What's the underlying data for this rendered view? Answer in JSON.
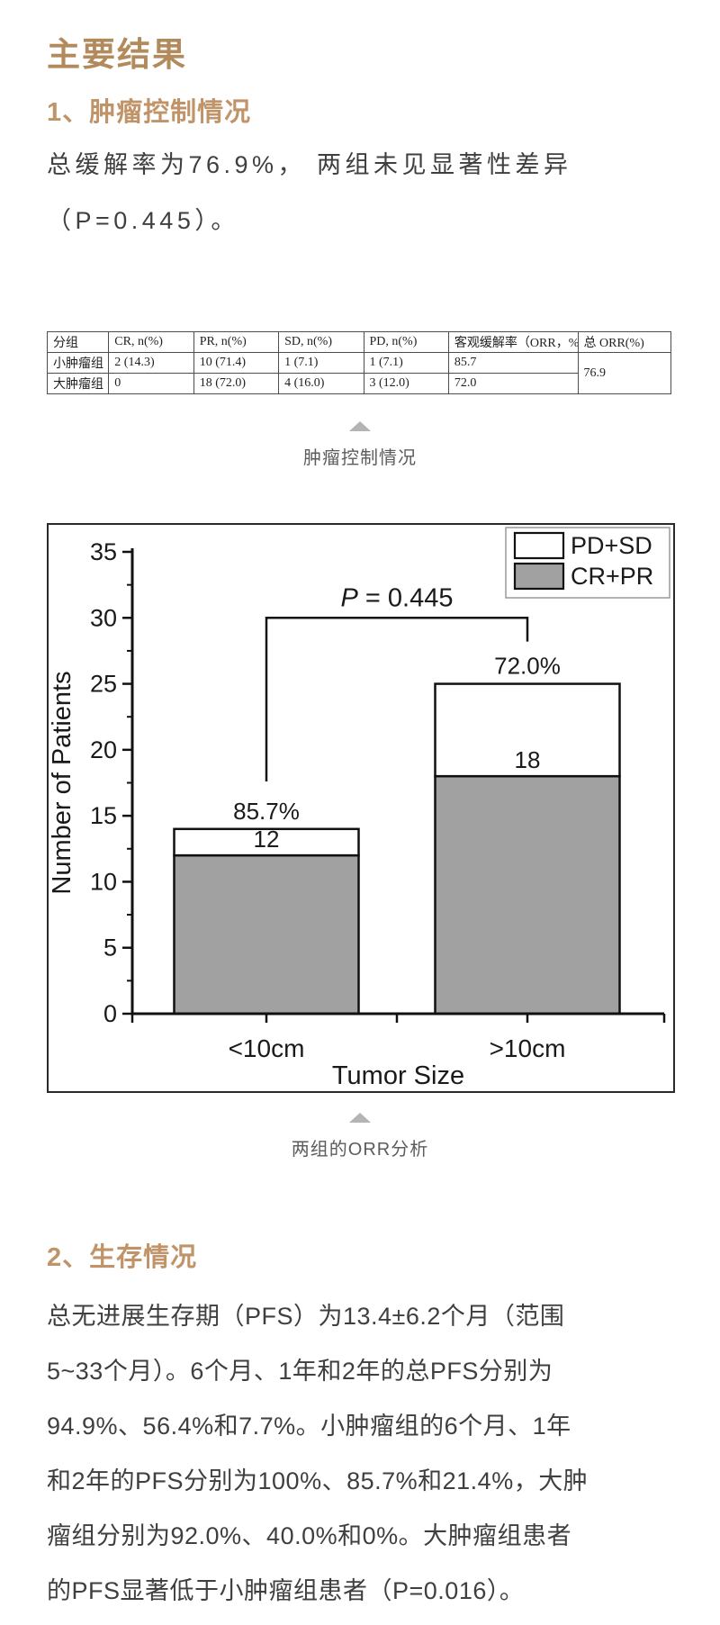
{
  "page": {
    "main_title": "主要结果",
    "section1": {
      "heading": "1、肿瘤控制情况",
      "paragraph": "总缓解率为76.9%， 两组未见显著性差异\n（P=0.445）。"
    },
    "table": {
      "headers": [
        "分组",
        "CR, n(%)",
        "PR, n(%)",
        "SD, n(%)",
        "PD, n(%)",
        "客观缓解率（ORR，%）",
        "总 ORR(%)"
      ],
      "rows": [
        [
          "小肿瘤组",
          "2 (14.3)",
          "10 (71.4)",
          "1 (7.1)",
          "1 (7.1)",
          "85.7"
        ],
        [
          "大肿瘤组",
          "0",
          "18 (72.0)",
          "4 (16.0)",
          "3 (12.0)",
          "72.0"
        ]
      ],
      "total_orr": "76.9"
    },
    "caption_table": "肿瘤控制情况",
    "caption_chart": "两组的ORR分析",
    "section2": {
      "heading": "2、生存情况",
      "paragraph": "总无进展生存期（PFS）为13.4±6.2个月（范围\n5~33个月）。6个月、1年和2年的总PFS分别为\n94.9%、56.4%和7.7%。小肿瘤组的6个月、1年\n和2年的PFS分别为100%、85.7%和21.4%，大肿\n瘤组分别为92.0%、40.0%和0%。大肿瘤组患者\n的PFS显著低于小肿瘤组患者（P=0.016）。"
    }
  },
  "colors": {
    "accent_title": "#b28a5c",
    "accent_heading": "#c09468",
    "body_text": "#3f3f3f",
    "caption_text": "#5c5c5c",
    "triangle": "#b4b4b4",
    "bar_gray": "#a1a1a1",
    "bar_white": "#ffffff",
    "chart_line": "#111111"
  },
  "chart_data": {
    "type": "bar",
    "stacked": true,
    "title": "",
    "xlabel": "Tumor Size",
    "ylabel": "Number of Patients",
    "categories": [
      "<10cm",
      ">10cm"
    ],
    "series": [
      {
        "name": "CR+PR",
        "values": [
          12,
          18
        ],
        "color": "#a1a1a1"
      },
      {
        "name": "PD+SD",
        "values": [
          2,
          7
        ],
        "color": "#ffffff"
      }
    ],
    "totals": [
      14,
      25
    ],
    "count_labels": [
      "12",
      "18"
    ],
    "percent_labels": [
      "85.7%",
      "72.0%"
    ],
    "p_label_prefix": "P",
    "p_label_rest": " = 0.445",
    "p_bracket": {
      "y": 30,
      "left_end": 17.6,
      "right_end": 28.2
    },
    "ylim": [
      0,
      35
    ],
    "ytick_step": 5,
    "ytick_minor_step": 2.5,
    "legend": [
      "PD+SD",
      "CR+PR"
    ],
    "legend_position": "top-right",
    "grid": false
  }
}
